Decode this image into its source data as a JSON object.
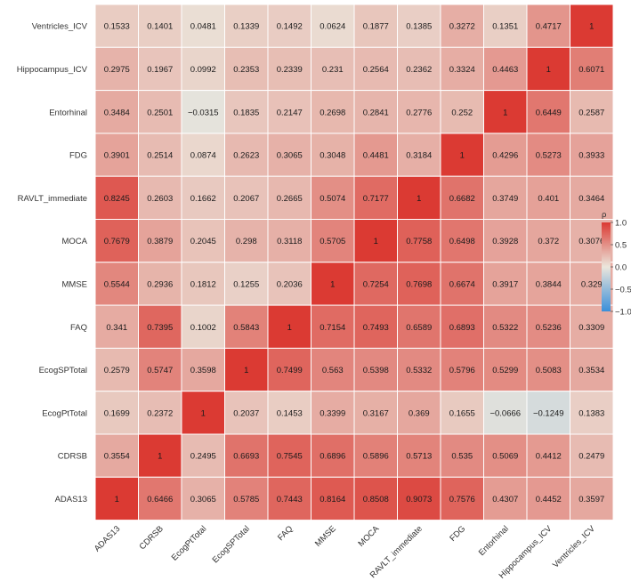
{
  "chart_data": {
    "type": "heatmap",
    "title": "",
    "xlabel": "",
    "ylabel": "",
    "x_categories": [
      "ADAS13",
      "CDRSB",
      "EcogPtTotal",
      "EcogSPTotal",
      "FAQ",
      "MMSE",
      "MOCA",
      "RAVLT_immediate",
      "FDG",
      "Entorhinal",
      "Hippocampus_ICV",
      "Ventricles_ICV"
    ],
    "y_categories_top_to_bottom": [
      "Ventricles_ICV",
      "Hippocampus_ICV",
      "Entorhinal",
      "FDG",
      "RAVLT_immediate",
      "MOCA",
      "MMSE",
      "FAQ",
      "EcogSPTotal",
      "EcogPtTotal",
      "CDRSB",
      "ADAS13"
    ],
    "values": [
      [
        "0.1533",
        "0.1401",
        "0.0481",
        "0.1339",
        "0.1492",
        "0.0624",
        "0.1877",
        "0.1385",
        "0.3272",
        "0.1351",
        "0.4717",
        "1"
      ],
      [
        "0.2975",
        "0.1967",
        "0.0992",
        "0.2353",
        "0.2339",
        "0.231",
        "0.2564",
        "0.2362",
        "0.3324",
        "0.4463",
        "1",
        "0.6071"
      ],
      [
        "0.3484",
        "0.2501",
        "−0.0315",
        "0.1835",
        "0.2147",
        "0.2698",
        "0.2841",
        "0.2776",
        "0.252",
        "1",
        "0.6449",
        "0.2587"
      ],
      [
        "0.3901",
        "0.2514",
        "0.0874",
        "0.2623",
        "0.3065",
        "0.3048",
        "0.4481",
        "0.3184",
        "1",
        "0.4296",
        "0.5273",
        "0.3933"
      ],
      [
        "0.8245",
        "0.2603",
        "0.1662",
        "0.2067",
        "0.2665",
        "0.5074",
        "0.7177",
        "1",
        "0.6682",
        "0.3749",
        "0.401",
        "0.3464"
      ],
      [
        "0.7679",
        "0.3879",
        "0.2045",
        "0.298",
        "0.3118",
        "0.5705",
        "1",
        "0.7758",
        "0.6498",
        "0.3928",
        "0.372",
        "0.3076"
      ],
      [
        "0.5544",
        "0.2936",
        "0.1812",
        "0.1255",
        "0.2036",
        "1",
        "0.7254",
        "0.7698",
        "0.6674",
        "0.3917",
        "0.3844",
        "0.329"
      ],
      [
        "0.341",
        "0.7395",
        "0.1002",
        "0.5843",
        "1",
        "0.7154",
        "0.7493",
        "0.6589",
        "0.6893",
        "0.5322",
        "0.5236",
        "0.3309"
      ],
      [
        "0.2579",
        "0.5747",
        "0.3598",
        "1",
        "0.7499",
        "0.563",
        "0.5398",
        "0.5332",
        "0.5796",
        "0.5299",
        "0.5083",
        "0.3534"
      ],
      [
        "0.1699",
        "0.2372",
        "1",
        "0.2037",
        "0.1453",
        "0.3399",
        "0.3167",
        "0.369",
        "0.1655",
        "−0.0666",
        "−0.1249",
        "0.1383"
      ],
      [
        "0.3554",
        "1",
        "0.2495",
        "0.6693",
        "0.7545",
        "0.6896",
        "0.5896",
        "0.5713",
        "0.535",
        "0.5069",
        "0.4412",
        "0.2479"
      ],
      [
        "1",
        "0.6466",
        "0.3065",
        "0.5785",
        "0.7443",
        "0.8164",
        "0.8508",
        "0.9073",
        "0.7576",
        "0.4307",
        "0.4452",
        "0.3597"
      ]
    ],
    "legend": {
      "title": "ρ",
      "ticks": [
        "1.0",
        "0.5",
        "0.0",
        "−0.5",
        "−1.0"
      ],
      "range": [
        -1,
        1
      ],
      "placement": "right"
    },
    "colors": {
      "low": "#3a8fd9",
      "mid": "#ebe6dc",
      "high": "#db3a33",
      "cell_border": "#ffffff"
    }
  }
}
